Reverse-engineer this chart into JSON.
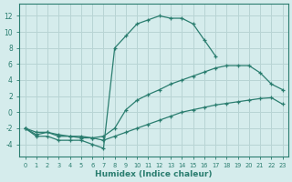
{
  "xlabel": "Humidex (Indice chaleur)",
  "line_color": "#2a7d6f",
  "bg_color": "#d5ecec",
  "grid_color": "#b8d4d4",
  "xlim": [
    -0.5,
    23.5
  ],
  "ylim": [
    -5.5,
    13.5
  ],
  "xticks": [
    0,
    1,
    2,
    3,
    4,
    5,
    6,
    7,
    8,
    9,
    10,
    11,
    12,
    13,
    14,
    15,
    16,
    17,
    18,
    19,
    20,
    21,
    22,
    23
  ],
  "yticks": [
    -4,
    -2,
    0,
    2,
    4,
    6,
    8,
    10,
    12
  ],
  "line1_x": [
    0,
    1,
    2,
    3,
    4,
    5,
    6,
    7,
    8,
    9,
    10,
    11,
    12,
    13,
    14,
    15,
    16,
    17
  ],
  "line1_y": [
    -2,
    -3,
    -3,
    -3.5,
    -3.5,
    -3.5,
    -4,
    -4.5,
    8.0,
    9.5,
    11.0,
    11.5,
    12.0,
    11.7,
    11.7,
    11.0,
    9.0,
    7.0
  ],
  "line2_x": [
    0,
    1,
    2,
    3,
    4,
    5,
    6,
    7,
    8,
    9,
    10,
    11,
    12,
    13,
    14,
    15,
    16,
    17,
    18,
    19,
    20,
    21,
    22,
    23
  ],
  "line2_y": [
    -2.0,
    -2.8,
    -2.5,
    -3.0,
    -3.0,
    -3.2,
    -3.2,
    -3.0,
    -2.0,
    0.3,
    1.5,
    2.2,
    2.8,
    3.5,
    4.0,
    4.5,
    5.0,
    5.5,
    5.8,
    5.8,
    5.8,
    4.9,
    3.5,
    2.8
  ],
  "line3_x": [
    0,
    1,
    2,
    3,
    4,
    5,
    6,
    7,
    8,
    9,
    10,
    11,
    12,
    13,
    14,
    15,
    16,
    17,
    18,
    19,
    20,
    21,
    22,
    23
  ],
  "line3_y": [
    -2.0,
    -2.5,
    -2.5,
    -2.8,
    -3.0,
    -3.0,
    -3.2,
    -3.5,
    -3.0,
    -2.5,
    -2.0,
    -1.5,
    -1.0,
    -0.5,
    0.0,
    0.3,
    0.6,
    0.9,
    1.1,
    1.3,
    1.5,
    1.7,
    1.8,
    1.0
  ]
}
